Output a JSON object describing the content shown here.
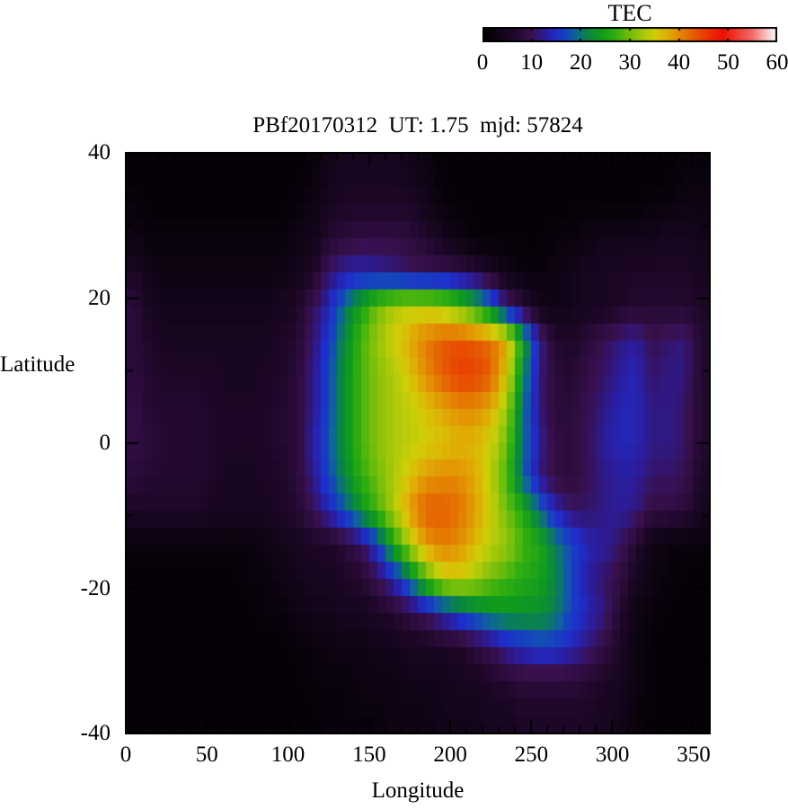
{
  "colorbar": {
    "title": "TEC",
    "min": 0,
    "max": 60,
    "tick_values": [
      0,
      10,
      20,
      30,
      40,
      50,
      60
    ],
    "tick_labels": [
      "0",
      "10",
      "20",
      "30",
      "40",
      "50",
      "60"
    ]
  },
  "plot": {
    "title": "PBf20170312  UT: 1.75  mjd: 57824",
    "xlabel": "Longitude",
    "ylabel": "Latitude",
    "x_tick_values": [
      0,
      50,
      100,
      150,
      200,
      250,
      300,
      350
    ],
    "x_tick_labels": [
      "0",
      "50",
      "100",
      "150",
      "200",
      "250",
      "300",
      "350"
    ],
    "y_tick_values": [
      40,
      20,
      0,
      -20,
      -40
    ],
    "y_tick_labels": [
      "40",
      "20",
      "0",
      "-20",
      "-40"
    ],
    "axis_color": "#000000",
    "background_color": "#ffffff"
  },
  "chart_data": {
    "type": "heatmap",
    "title": "PBf20170312  UT: 1.75  mjd: 57824",
    "xlabel": "Longitude",
    "ylabel": "Latitude",
    "colorbar_label": "TEC",
    "xlim": [
      0,
      360
    ],
    "ylim": [
      -40,
      40
    ],
    "zlim": [
      0,
      60
    ],
    "lon_bin_centers": [
      5,
      15,
      25,
      35,
      45,
      55,
      65,
      75,
      85,
      95,
      105,
      115,
      125,
      135,
      145,
      155,
      165,
      175,
      185,
      195,
      205,
      215,
      225,
      235,
      245,
      255,
      265,
      275,
      285,
      295,
      305,
      315,
      325,
      335,
      345,
      355
    ],
    "lat_bin_centers": [
      40,
      35,
      30,
      25,
      20,
      15,
      10,
      5,
      0,
      -5,
      -10,
      -15,
      -20,
      -25,
      -30,
      -35,
      -40
    ],
    "values_by_lat_desc": [
      [
        1,
        1,
        1,
        1,
        1,
        1,
        1,
        1,
        1,
        1,
        1,
        2,
        4,
        5,
        5,
        5,
        5,
        4,
        3,
        1,
        1,
        1,
        1,
        1,
        1,
        1,
        1,
        1,
        1,
        1,
        1,
        1,
        1,
        1,
        2,
        2
      ],
      [
        2,
        1,
        1,
        1,
        1,
        1,
        1,
        1,
        1,
        1,
        2,
        3,
        5,
        6,
        6,
        6,
        6,
        6,
        4,
        2,
        1,
        1,
        1,
        1,
        1,
        1,
        1,
        1,
        1,
        1,
        1,
        1,
        2,
        2,
        3,
        3
      ],
      [
        3,
        2,
        2,
        2,
        2,
        2,
        2,
        2,
        2,
        2,
        3,
        4,
        7,
        8,
        9,
        9,
        9,
        8,
        7,
        5,
        3,
        1,
        1,
        1,
        1,
        1,
        2,
        2,
        3,
        4,
        4,
        4,
        4,
        5,
        5,
        4
      ],
      [
        6,
        3,
        3,
        3,
        3,
        3,
        3,
        3,
        3,
        3,
        4,
        6,
        11,
        13,
        14,
        13,
        12,
        11,
        10,
        10,
        9,
        8,
        6,
        3,
        2,
        2,
        3,
        4,
        5,
        5,
        6,
        6,
        6,
        6,
        6,
        5
      ],
      [
        8,
        5,
        4,
        4,
        4,
        4,
        4,
        4,
        4,
        5,
        6,
        10,
        14,
        20,
        25,
        30,
        33,
        34,
        34,
        33,
        30,
        26,
        20,
        12,
        8,
        4,
        3,
        4,
        5,
        5,
        6,
        7,
        7,
        7,
        7,
        6
      ],
      [
        8,
        6,
        5,
        5,
        5,
        5,
        5,
        5,
        5,
        6,
        7,
        11,
        16,
        22,
        28,
        32,
        35,
        38,
        41,
        43,
        44,
        43,
        42,
        38,
        25,
        13,
        7,
        6,
        8,
        10,
        12,
        13,
        10,
        11,
        12,
        7
      ],
      [
        8,
        7,
        6,
        6,
        6,
        6,
        5,
        5,
        6,
        6,
        8,
        12,
        17,
        23,
        28,
        31,
        33,
        36,
        40,
        43,
        45,
        45,
        43,
        36,
        22,
        12,
        8,
        7,
        9,
        11,
        13,
        14,
        11,
        12,
        12,
        7
      ],
      [
        9,
        7,
        7,
        7,
        7,
        6,
        6,
        6,
        6,
        7,
        8,
        12,
        17,
        23,
        28,
        31,
        33,
        34,
        36,
        38,
        40,
        40,
        38,
        32,
        20,
        12,
        8,
        8,
        10,
        12,
        14,
        14,
        12,
        12,
        11,
        7
      ],
      [
        9,
        8,
        7,
        7,
        7,
        6,
        6,
        6,
        6,
        7,
        8,
        13,
        18,
        23,
        28,
        31,
        33,
        34,
        35,
        36,
        37,
        37,
        35,
        30,
        20,
        13,
        9,
        8,
        10,
        13,
        14,
        14,
        12,
        12,
        11,
        7
      ],
      [
        8,
        7,
        7,
        7,
        7,
        6,
        5,
        5,
        6,
        6,
        8,
        12,
        17,
        22,
        27,
        30,
        33,
        36,
        39,
        40,
        40,
        38,
        34,
        28,
        19,
        12,
        9,
        8,
        10,
        12,
        13,
        13,
        11,
        11,
        10,
        6
      ],
      [
        6,
        6,
        6,
        6,
        6,
        5,
        5,
        5,
        5,
        6,
        7,
        10,
        14,
        18,
        23,
        28,
        33,
        39,
        43,
        43,
        42,
        39,
        35,
        30,
        26,
        20,
        14,
        11,
        11,
        12,
        13,
        12,
        9,
        9,
        8,
        5
      ],
      [
        2,
        2,
        2,
        2,
        2,
        2,
        2,
        2,
        3,
        4,
        5,
        6,
        6,
        8,
        10,
        16,
        25,
        33,
        39,
        41,
        40,
        37,
        34,
        32,
        28,
        26,
        21,
        17,
        14,
        13,
        11,
        7,
        3,
        2,
        2,
        2
      ],
      [
        1,
        1,
        1,
        1,
        1,
        1,
        1,
        2,
        2,
        3,
        4,
        5,
        5,
        6,
        7,
        10,
        14,
        20,
        28,
        34,
        35,
        33,
        30,
        28,
        26,
        25,
        22,
        17,
        13,
        11,
        9,
        5,
        3,
        2,
        1,
        1
      ],
      [
        1,
        1,
        1,
        1,
        1,
        1,
        1,
        1,
        2,
        2,
        3,
        4,
        4,
        5,
        5,
        6,
        7,
        9,
        11,
        14,
        17,
        20,
        22,
        23,
        23,
        23,
        21,
        17,
        14,
        12,
        7,
        3,
        2,
        1,
        1,
        1
      ],
      [
        1,
        1,
        1,
        1,
        1,
        1,
        1,
        1,
        1,
        1,
        2,
        2,
        3,
        3,
        3,
        4,
        4,
        5,
        5,
        6,
        6,
        8,
        10,
        13,
        15,
        16,
        16,
        14,
        12,
        9,
        6,
        3,
        1,
        1,
        1,
        1
      ],
      [
        1,
        1,
        1,
        1,
        1,
        1,
        1,
        1,
        1,
        1,
        1,
        2,
        2,
        2,
        3,
        3,
        3,
        4,
        4,
        4,
        5,
        5,
        6,
        7,
        8,
        8,
        8,
        8,
        7,
        6,
        5,
        3,
        1,
        1,
        1,
        1
      ],
      [
        1,
        1,
        1,
        1,
        1,
        1,
        1,
        1,
        1,
        1,
        1,
        1,
        2,
        2,
        2,
        2,
        3,
        3,
        3,
        4,
        4,
        4,
        5,
        5,
        6,
        6,
        6,
        6,
        6,
        5,
        4,
        2,
        1,
        1,
        1,
        1
      ]
    ],
    "colormap_stops": [
      [
        0,
        "#000000"
      ],
      [
        6,
        "#1c0726"
      ],
      [
        10,
        "#38104e"
      ],
      [
        13,
        "#2b1d9e"
      ],
      [
        15,
        "#1e2ecc"
      ],
      [
        17,
        "#1741c0"
      ],
      [
        19,
        "#0d6699"
      ],
      [
        21,
        "#0a8050"
      ],
      [
        24,
        "#0e9a1e"
      ],
      [
        27,
        "#2fae10"
      ],
      [
        30,
        "#72bd0c"
      ],
      [
        33,
        "#abc90a"
      ],
      [
        35,
        "#cfce08"
      ],
      [
        37,
        "#ddb606"
      ],
      [
        39,
        "#e29a04"
      ],
      [
        41,
        "#e47c03"
      ],
      [
        43,
        "#e65c02"
      ],
      [
        46,
        "#ea3202"
      ],
      [
        49,
        "#ee1002"
      ],
      [
        55,
        "#f56a6a"
      ],
      [
        58,
        "#fcc3c3"
      ],
      [
        60,
        "#ffffff"
      ]
    ],
    "legend_position": "top-right-colorbar",
    "grid": false
  }
}
